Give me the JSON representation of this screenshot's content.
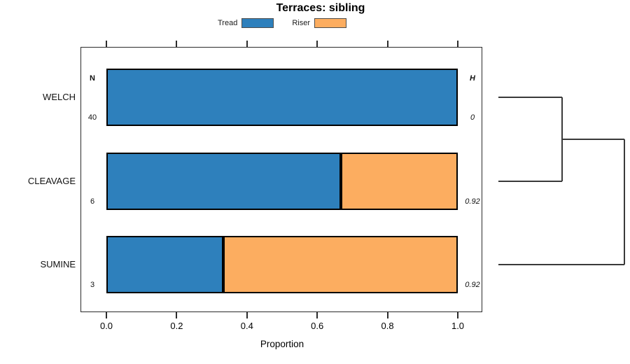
{
  "chart_data": {
    "type": "bar",
    "orientation": "horizontal",
    "stacked": true,
    "title": "Terraces: sibling",
    "xlabel": "Proportion",
    "xlim": [
      0,
      1
    ],
    "x_ticks": [
      0.0,
      0.2,
      0.4,
      0.6,
      0.8,
      1.0
    ],
    "x_tick_labels": [
      "0.0",
      "0.2",
      "0.4",
      "0.6",
      "0.8",
      "1.0"
    ],
    "grid": false,
    "legend_position": "top",
    "categories": [
      "WELCH",
      "CLEAVAGE",
      "SUMINE"
    ],
    "series": [
      {
        "name": "Tread",
        "color": "#2e80bc",
        "values": [
          1.0,
          0.667,
          0.333
        ]
      },
      {
        "name": "Riser",
        "color": "#fcad60",
        "values": [
          0.0,
          0.333,
          0.667
        ]
      }
    ],
    "row_annotations": {
      "n_header": "N",
      "h_header": "H",
      "N": [
        "40",
        "6",
        "3"
      ],
      "H": [
        "0",
        "0.92",
        "0.92"
      ]
    },
    "dendrogram": {
      "leaves": [
        "WELCH",
        "CLEAVAGE",
        "SUMINE"
      ],
      "joins": [
        {
          "members": [
            "WELCH",
            "CLEAVAGE"
          ]
        },
        {
          "members": [
            [
              "WELCH",
              "CLEAVAGE"
            ],
            "SUMINE"
          ]
        }
      ]
    }
  },
  "colors": {
    "tread": "#2e80bc",
    "riser": "#fcad60",
    "bar_border": "#000000",
    "frame": "#2b2b2b",
    "dendrogram_line": "#3a3a3a"
  }
}
